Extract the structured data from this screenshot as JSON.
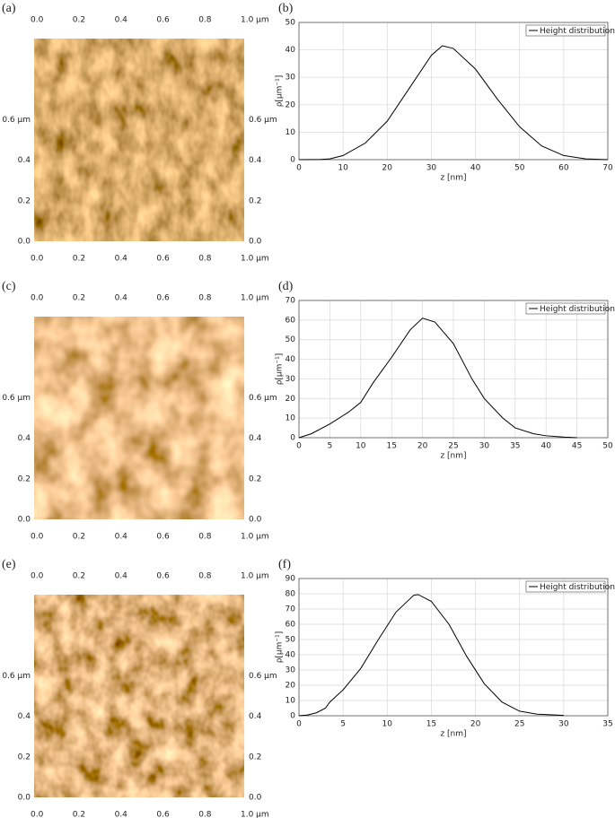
{
  "images": [
    {
      "label": "(a)",
      "xticks": [
        {
          "value": 0,
          "label": "0.0"
        },
        {
          "value": 0.2,
          "label": "0.2"
        },
        {
          "value": 0.4,
          "label": "0.4"
        },
        {
          "value": 0.6,
          "label": "0.6"
        },
        {
          "value": 0.8,
          "label": "0.8"
        },
        {
          "value": 1.0,
          "label": "1.0 µm"
        }
      ],
      "yticks": [
        {
          "value": 0,
          "label": "0.0"
        },
        {
          "value": 0.2,
          "label": "0.2"
        },
        {
          "value": 0.4,
          "label": "0.4"
        },
        {
          "value": 0.6,
          "label": "0.6 µm"
        }
      ]
    },
    {
      "label": "(c)",
      "xticks": [
        {
          "value": 0,
          "label": "0.0"
        },
        {
          "value": 0.2,
          "label": "0.2"
        },
        {
          "value": 0.4,
          "label": "0.4"
        },
        {
          "value": 0.6,
          "label": "0.6"
        },
        {
          "value": 0.8,
          "label": "0.8"
        },
        {
          "value": 1.0,
          "label": "1.0 µm"
        }
      ],
      "yticks": [
        {
          "value": 0,
          "label": "0.0"
        },
        {
          "value": 0.2,
          "label": "0.2"
        },
        {
          "value": 0.4,
          "label": "0.4"
        },
        {
          "value": 0.6,
          "label": "0.6 µm"
        }
      ]
    },
    {
      "label": "(e)",
      "xticks": [
        {
          "value": 0,
          "label": "0.0"
        },
        {
          "value": 0.2,
          "label": "0.2"
        },
        {
          "value": 0.4,
          "label": "0.4"
        },
        {
          "value": 0.6,
          "label": "0.6"
        },
        {
          "value": 0.8,
          "label": "0.8"
        },
        {
          "value": 1.0,
          "label": "1.0 µm"
        }
      ],
      "yticks": [
        {
          "value": 0,
          "label": "0.0"
        },
        {
          "value": 0.2,
          "label": "0.2"
        },
        {
          "value": 0.4,
          "label": "0.4"
        },
        {
          "value": 0.6,
          "label": "0.6 µm"
        }
      ]
    }
  ],
  "chart_data": [
    {
      "type": "line",
      "label": "(b)",
      "x_label": "z [nm]",
      "y_label": "ρ[µm⁻¹]",
      "grid": true,
      "legend": "top-right",
      "x": [
        0,
        5,
        7,
        10,
        15,
        20,
        25,
        30,
        32.5,
        35,
        40,
        45,
        50,
        55,
        60,
        65,
        70
      ],
      "series": [
        {
          "name": "Height distribution",
          "color": "#000000",
          "values": [
            0,
            0.1,
            0.3,
            1.5,
            6,
            14,
            26,
            38,
            41.5,
            40.5,
            33,
            22,
            12,
            5,
            1.5,
            0.3,
            0
          ]
        }
      ],
      "xlim": [
        0,
        70
      ],
      "ylim": [
        0,
        50
      ],
      "xticks": [
        0,
        10,
        20,
        30,
        40,
        50,
        60,
        70
      ],
      "yticks": [
        0,
        10,
        20,
        30,
        40,
        50
      ]
    },
    {
      "type": "line",
      "label": "(d)",
      "x_label": "z [nm]",
      "y_label": "ρ[µm⁻¹]",
      "grid": true,
      "legend": "top-right",
      "x": [
        0,
        2,
        5,
        8,
        10,
        12,
        15,
        18,
        20,
        22,
        25,
        28,
        30,
        33,
        35,
        38,
        40,
        43,
        45
      ],
      "series": [
        {
          "name": "Height distribution",
          "color": "#000000",
          "values": [
            0,
            2,
            7,
            13,
            18,
            28,
            41,
            55,
            61,
            59,
            48,
            30,
            20,
            10,
            5,
            2,
            1,
            0.3,
            0
          ]
        }
      ],
      "xlim": [
        0,
        50
      ],
      "ylim": [
        0,
        70
      ],
      "xticks": [
        0,
        5,
        10,
        15,
        20,
        25,
        30,
        35,
        40,
        45,
        50
      ],
      "yticks": [
        0,
        10,
        20,
        30,
        40,
        50,
        60,
        70
      ]
    },
    {
      "type": "line",
      "label": "(f)",
      "x_label": "z [nm]",
      "y_label": "ρ[µm⁻¹]",
      "grid": true,
      "legend": "top-right",
      "x": [
        0,
        1,
        2,
        3,
        3.5,
        5,
        7,
        9,
        11,
        13,
        13.5,
        15,
        17,
        19,
        21,
        23,
        25,
        27,
        29,
        30
      ],
      "series": [
        {
          "name": "Height distribution",
          "color": "#000000",
          "values": [
            0,
            0.5,
            2,
            5,
            9,
            17,
            31,
            50,
            68,
            79,
            79.5,
            75,
            60,
            39,
            21,
            9,
            3,
            1,
            0.5,
            0.2
          ]
        }
      ],
      "xlim": [
        0,
        35
      ],
      "ylim": [
        0,
        90
      ],
      "xticks": [
        0,
        5,
        10,
        15,
        20,
        25,
        30,
        35
      ],
      "yticks": [
        0,
        10,
        20,
        30,
        40,
        50,
        60,
        70,
        80,
        90
      ]
    }
  ]
}
